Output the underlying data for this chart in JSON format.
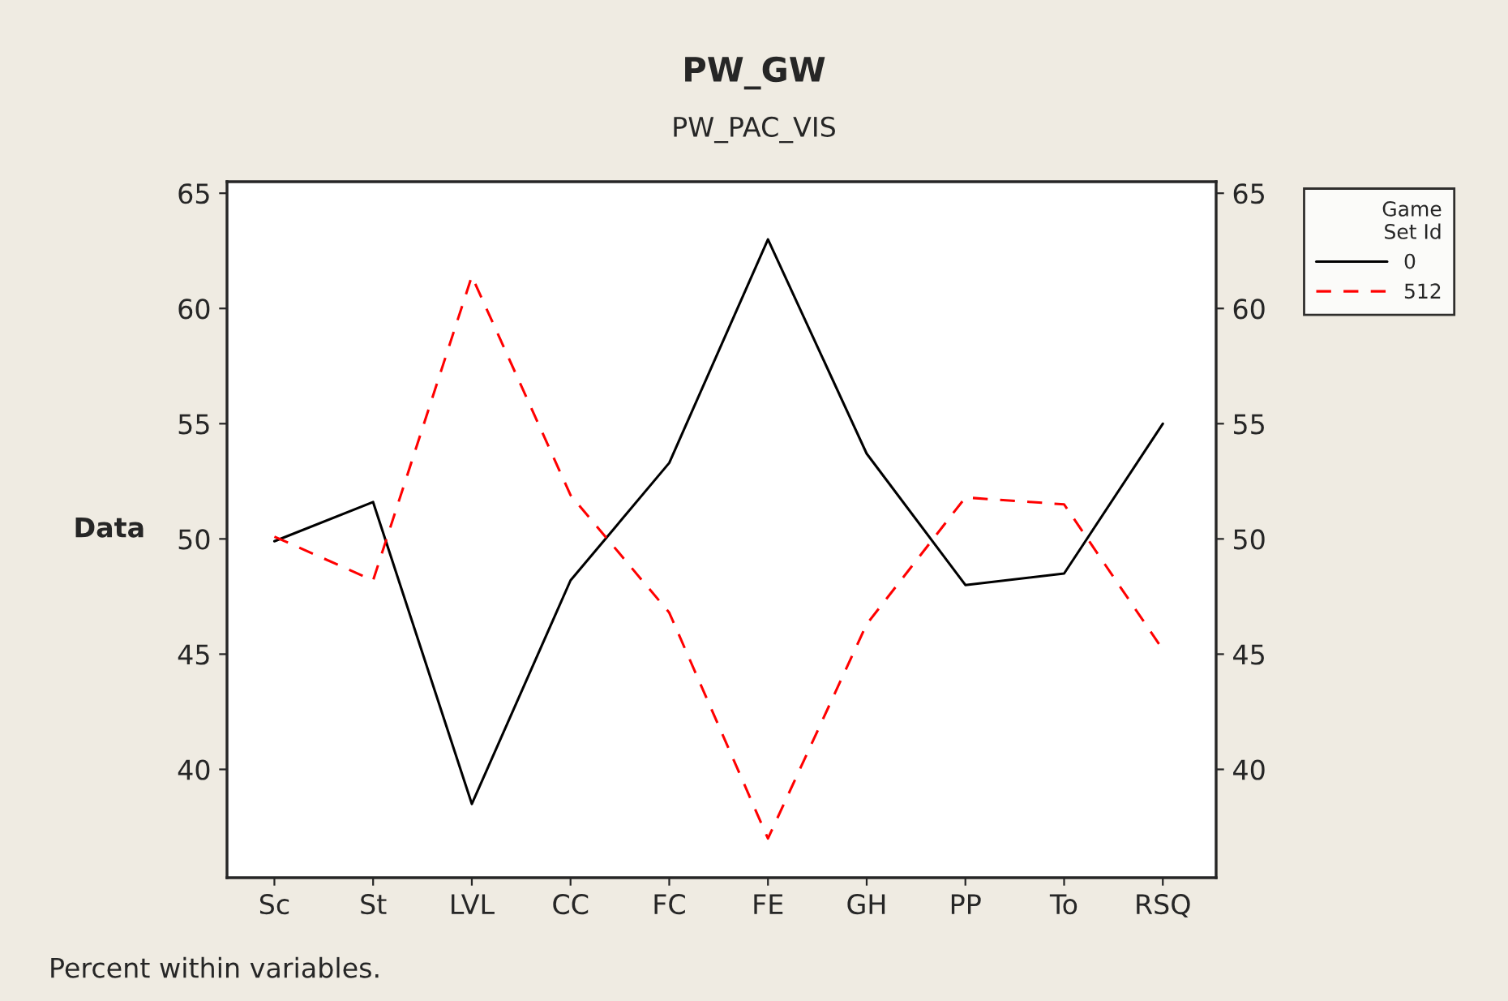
{
  "chart_data": {
    "type": "line",
    "title": "PW_GW",
    "subtitle": "PW_PAC_VIS",
    "ylabel": "Data",
    "categories": [
      "Sc",
      "St",
      "LVL",
      "CC",
      "FC",
      "FE",
      "GH",
      "PP",
      "To",
      "RSQ"
    ],
    "series": [
      {
        "name": "0",
        "color": "#000000",
        "line_style": "solid",
        "values": [
          49.9,
          51.6,
          38.5,
          48.2,
          53.3,
          63.0,
          53.7,
          48.0,
          48.5,
          55.0
        ]
      },
      {
        "name": "512",
        "color": "#ff0000",
        "line_style": "dashed",
        "values": [
          50.1,
          48.2,
          61.4,
          51.9,
          46.8,
          37.0,
          46.3,
          51.8,
          51.5,
          45.2
        ]
      }
    ],
    "ylim": [
      35.3,
      65.5
    ],
    "yticks": [
      40,
      45,
      50,
      55,
      60,
      65
    ],
    "y2lim": [
      35.3,
      65.5
    ],
    "y2ticks": [
      40,
      45,
      50,
      55,
      60,
      65
    ],
    "legend_title": "Game\nSet Id",
    "legend": "top right",
    "grid": false,
    "marker": "none",
    "annotations": [
      "Percent within variables."
    ]
  }
}
